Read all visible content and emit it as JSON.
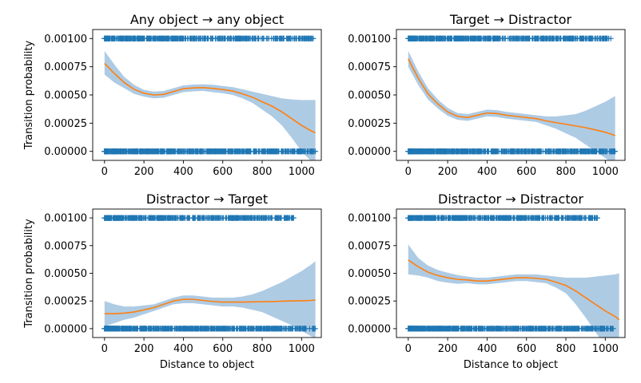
{
  "figure": {
    "ylabel": "Transition probability",
    "xlabel": "Distance to object"
  },
  "colors": {
    "points": "#1f77b4",
    "fit": "#ff7f0e",
    "band": "#aecbe4"
  },
  "chart_data": [
    {
      "type": "scatter",
      "title": "Any object → any object",
      "xlabel": "",
      "ylabel": "Transition probability",
      "xlim": [
        -60,
        1100
      ],
      "ylim": [
        -8e-05,
        0.00108
      ],
      "xticks": [
        0,
        200,
        400,
        600,
        800,
        1000
      ],
      "yticks": [
        0.0,
        0.00025,
        0.0005,
        0.00075,
        0.001
      ],
      "ytick_labels": [
        "0.00000",
        "0.00025",
        "0.00050",
        "0.00075",
        "0.00100"
      ],
      "marker": "+",
      "points": {
        "y_values": [
          0.0,
          0.001
        ],
        "x_range_y1": [
          0,
          1060
        ],
        "x_range_y0": [
          0,
          1070
        ]
      },
      "fit": {
        "x": [
          0,
          50,
          100,
          150,
          200,
          250,
          300,
          350,
          400,
          450,
          500,
          550,
          600,
          650,
          700,
          750,
          800,
          850,
          900,
          950,
          1000,
          1050,
          1070
        ],
        "y": [
          0.00078,
          0.00069,
          0.00061,
          0.00055,
          0.000515,
          0.0005,
          0.000505,
          0.00053,
          0.000555,
          0.000562,
          0.000565,
          0.000558,
          0.000548,
          0.000535,
          0.00051,
          0.00048,
          0.00044,
          0.0004,
          0.00035,
          0.00029,
          0.00023,
          0.00018,
          0.000165
        ],
        "ci_upper": [
          0.00089,
          0.00077,
          0.00066,
          0.00059,
          0.000545,
          0.00053,
          0.000535,
          0.00056,
          0.000585,
          0.000592,
          0.000595,
          0.00059,
          0.00058,
          0.00057,
          0.00055,
          0.00053,
          0.00051,
          0.00049,
          0.00047,
          0.00046,
          0.000455,
          0.000455,
          0.000455
        ],
        "ci_lower": [
          0.00068,
          0.00061,
          0.00056,
          0.00051,
          0.000485,
          0.00047,
          0.000475,
          0.0005,
          0.000525,
          0.000532,
          0.000535,
          0.000525,
          0.000515,
          0.0005,
          0.00047,
          0.00043,
          0.00037,
          0.00031,
          0.00023,
          0.00012,
          0.0,
          -9e-05,
          -0.00013
        ]
      }
    },
    {
      "type": "scatter",
      "title": "Target → Distractor",
      "xlabel": "",
      "ylabel": "",
      "xlim": [
        -60,
        1100
      ],
      "ylim": [
        -8e-05,
        0.00108
      ],
      "xticks": [
        0,
        200,
        400,
        600,
        800,
        1000
      ],
      "yticks": [
        0.0,
        0.00025,
        0.0005,
        0.00075,
        0.001
      ],
      "ytick_labels": [
        "0.00000",
        "0.00025",
        "0.00050",
        "0.00075",
        "0.00100"
      ],
      "marker": "+",
      "points": {
        "y_values": [
          0.0,
          0.001
        ],
        "x_range_y1": [
          0,
          1030
        ],
        "x_range_y0": [
          0,
          1050
        ]
      },
      "fit": {
        "x": [
          0,
          50,
          100,
          150,
          200,
          250,
          300,
          350,
          400,
          450,
          500,
          550,
          600,
          650,
          700,
          750,
          800,
          850,
          900,
          950,
          1000,
          1050
        ],
        "y": [
          0.00082,
          0.00065,
          0.00051,
          0.00042,
          0.00035,
          0.00031,
          0.0003,
          0.00032,
          0.00034,
          0.000335,
          0.00032,
          0.00031,
          0.0003,
          0.00029,
          0.00027,
          0.000255,
          0.00024,
          0.000225,
          0.00021,
          0.00019,
          0.00017,
          0.00014
        ],
        "ci_upper": [
          0.00089,
          0.00071,
          0.00056,
          0.00046,
          0.000385,
          0.00034,
          0.00033,
          0.00035,
          0.00037,
          0.000365,
          0.00035,
          0.00034,
          0.00033,
          0.00032,
          0.00031,
          0.00031,
          0.00032,
          0.00033,
          0.00036,
          0.0004,
          0.00044,
          0.00049
        ],
        "ci_lower": [
          0.00075,
          0.00059,
          0.00046,
          0.00038,
          0.000315,
          0.00028,
          0.00027,
          0.00029,
          0.00031,
          0.000305,
          0.00029,
          0.00028,
          0.00027,
          0.00026,
          0.00023,
          0.0002,
          0.00016,
          0.00012,
          6e-05,
          0.0,
          -6e-05,
          -0.00012
        ]
      }
    },
    {
      "type": "scatter",
      "title": "Distractor → Target",
      "xlabel": "Distance to object",
      "ylabel": "Transition probability",
      "xlim": [
        -60,
        1100
      ],
      "ylim": [
        -8e-05,
        0.00108
      ],
      "xticks": [
        0,
        200,
        400,
        600,
        800,
        1000
      ],
      "yticks": [
        0.0,
        0.00025,
        0.0005,
        0.00075,
        0.001
      ],
      "ytick_labels": [
        "0.00000",
        "0.00025",
        "0.00050",
        "0.00075",
        "0.00100"
      ],
      "marker": "+",
      "points": {
        "y_values": [
          0.0,
          0.001
        ],
        "x_range_y1": [
          0,
          960
        ],
        "x_range_y0": [
          0,
          1070
        ]
      },
      "fit": {
        "x": [
          0,
          50,
          100,
          150,
          200,
          250,
          300,
          350,
          400,
          450,
          500,
          550,
          600,
          650,
          700,
          750,
          800,
          850,
          900,
          950,
          1000,
          1050,
          1070
        ],
        "y": [
          0.000135,
          0.000135,
          0.00014,
          0.00015,
          0.00017,
          0.00019,
          0.00022,
          0.00025,
          0.000265,
          0.000265,
          0.000255,
          0.000245,
          0.00024,
          0.00024,
          0.00024,
          0.000242,
          0.000243,
          0.000245,
          0.000248,
          0.00025,
          0.000252,
          0.000255,
          0.000258
        ],
        "ci_upper": [
          0.00025,
          0.00022,
          0.0002,
          0.0002,
          0.00021,
          0.00022,
          0.00025,
          0.00028,
          0.0003,
          0.0003,
          0.00029,
          0.00028,
          0.00028,
          0.00028,
          0.00029,
          0.00031,
          0.00034,
          0.00038,
          0.00042,
          0.00047,
          0.00052,
          0.00058,
          0.00061
        ],
        "ci_lower": [
          2e-05,
          5e-05,
          8e-05,
          0.0001,
          0.00013,
          0.00016,
          0.00019,
          0.00022,
          0.00023,
          0.00023,
          0.00022,
          0.00021,
          0.0002,
          0.0002,
          0.00019,
          0.00017,
          0.00015,
          0.00011,
          7e-05,
          3e-05,
          -2e-05,
          -7e-05,
          -9e-05
        ]
      }
    },
    {
      "type": "scatter",
      "title": "Distractor → Distractor",
      "xlabel": "Distance to object",
      "ylabel": "",
      "xlim": [
        -60,
        1100
      ],
      "ylim": [
        -8e-05,
        0.00108
      ],
      "xticks": [
        0,
        200,
        400,
        600,
        800,
        1000
      ],
      "yticks": [
        0.0,
        0.00025,
        0.0005,
        0.00075,
        0.001
      ],
      "ytick_labels": [
        "0.00000",
        "0.00025",
        "0.00050",
        "0.00075",
        "0.00100"
      ],
      "marker": "+",
      "points": {
        "y_values": [
          0.0,
          0.001
        ],
        "x_range_y1": [
          0,
          960
        ],
        "x_range_y0": [
          0,
          1040
        ]
      },
      "fit": {
        "x": [
          0,
          50,
          100,
          150,
          200,
          250,
          300,
          350,
          400,
          450,
          500,
          550,
          600,
          650,
          700,
          750,
          800,
          850,
          900,
          950,
          1000,
          1050,
          1070
        ],
        "y": [
          0.00062,
          0.00056,
          0.00051,
          0.00048,
          0.00046,
          0.000445,
          0.00044,
          0.00043,
          0.00043,
          0.00044,
          0.00045,
          0.00046,
          0.00046,
          0.000455,
          0.000445,
          0.00042,
          0.00039,
          0.00034,
          0.00028,
          0.00022,
          0.00016,
          0.00011,
          8e-05
        ],
        "ci_upper": [
          0.00076,
          0.00064,
          0.00057,
          0.00053,
          0.000505,
          0.000485,
          0.00047,
          0.00046,
          0.00046,
          0.00047,
          0.00048,
          0.00049,
          0.00049,
          0.00049,
          0.00048,
          0.00047,
          0.00046,
          0.00046,
          0.00046,
          0.00047,
          0.00048,
          0.00049,
          0.0005
        ],
        "ci_lower": [
          0.00049,
          0.00048,
          0.00046,
          0.00043,
          0.000415,
          0.000405,
          0.00041,
          0.0004,
          0.0004,
          0.00041,
          0.00042,
          0.00043,
          0.00043,
          0.00042,
          0.00041,
          0.00037,
          0.00032,
          0.00022,
          0.0001,
          -3e-05,
          -0.00016,
          -0.0003,
          -0.00035
        ]
      }
    }
  ]
}
